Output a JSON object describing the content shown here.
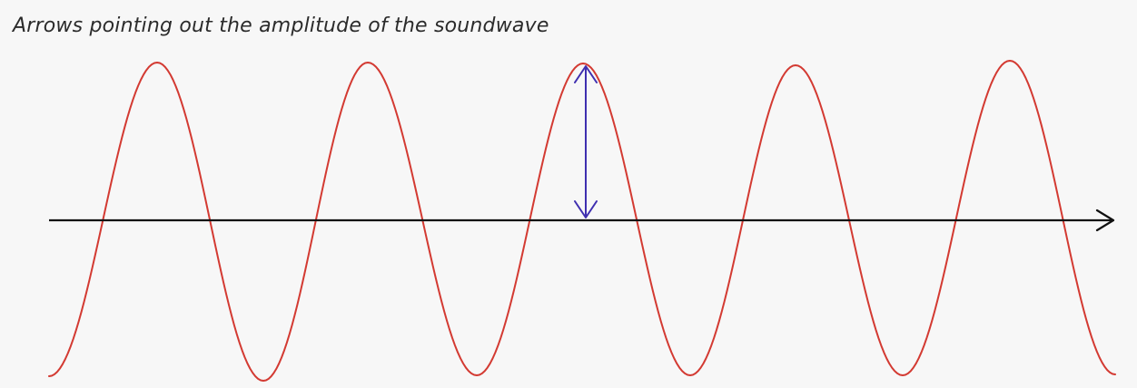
{
  "caption": "Arrows pointing out the amplitude of the soundwave",
  "colors": {
    "background": "#f7f7f7",
    "wave": "#d33a32",
    "axis": "#111111",
    "amplitude_arrow": "#3f2fb0",
    "caption_text": "#2b2b2b"
  },
  "wave": {
    "cycles_shown": 5,
    "peaks": 5,
    "troughs": 5
  }
}
